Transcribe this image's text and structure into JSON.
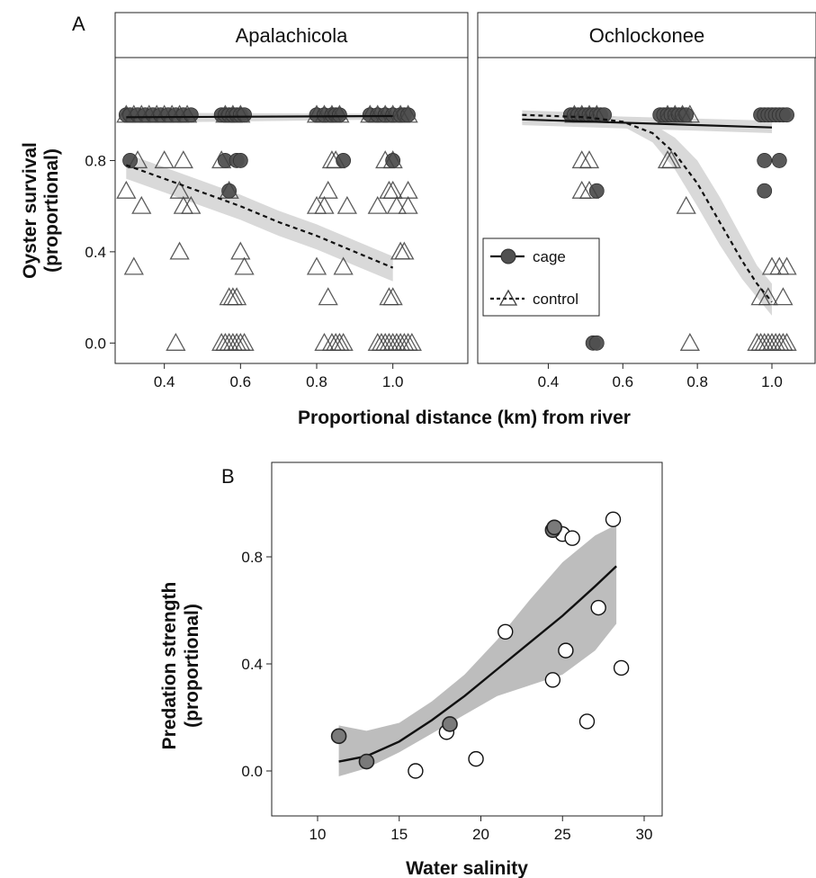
{
  "colors": {
    "cage_fill": "#505050",
    "cage_stroke": "#303030",
    "control_stroke": "#404040",
    "ribbon_a": "#d9d9d9",
    "ribbon_b": "#bdbdbd",
    "salinity_cage_fill": "#7a7a7a",
    "salinity_control_fill": "#ffffff",
    "line": "#111111"
  },
  "panel_a": {
    "letter": "A",
    "ylabel_line1": "Oyster survival",
    "ylabel_line2": "(proportional)",
    "xlabel": "Proportional distance (km) from river",
    "legend": {
      "cage": "cage",
      "control": "control"
    }
  },
  "panel_b": {
    "letter": "B",
    "ylabel_line1": "Predation strength",
    "ylabel_line2": "(proportional)",
    "xlabel": "Water salinity"
  },
  "chart_data": [
    {
      "type": "scatter",
      "facet": "Apalachicola",
      "xlim": [
        0.25,
        1.08
      ],
      "ylim": [
        -0.05,
        1.2
      ],
      "x_ticks": [
        0.4,
        0.6,
        0.8,
        1.0
      ],
      "x_tick_labels": [
        "0.4",
        "0.6",
        "0.8",
        "1.0"
      ],
      "y_ticks": [
        0.0,
        0.4,
        0.8
      ],
      "y_tick_labels": [
        "0.0",
        "0.4",
        "0.8"
      ],
      "grid": false,
      "legend_position": "inside-right (second facet)",
      "series": [
        {
          "name": "cage",
          "marker": "circle",
          "points": [
            [
              0.3,
              1.0
            ],
            [
              0.31,
              1.0
            ],
            [
              0.33,
              1.0
            ],
            [
              0.35,
              1.0
            ],
            [
              0.37,
              1.0
            ],
            [
              0.39,
              1.0
            ],
            [
              0.41,
              1.0
            ],
            [
              0.43,
              1.0
            ],
            [
              0.45,
              1.0
            ],
            [
              0.47,
              1.0
            ],
            [
              0.55,
              1.0
            ],
            [
              0.56,
              1.0
            ],
            [
              0.57,
              1.0
            ],
            [
              0.58,
              1.0
            ],
            [
              0.59,
              1.0
            ],
            [
              0.6,
              1.0
            ],
            [
              0.61,
              1.0
            ],
            [
              0.8,
              1.0
            ],
            [
              0.82,
              1.0
            ],
            [
              0.84,
              1.0
            ],
            [
              0.85,
              1.0
            ],
            [
              0.86,
              1.0
            ],
            [
              0.94,
              1.0
            ],
            [
              0.96,
              1.0
            ],
            [
              0.98,
              1.0
            ],
            [
              1.0,
              1.0
            ],
            [
              1.02,
              1.0
            ],
            [
              1.03,
              1.0
            ],
            [
              1.04,
              1.0
            ],
            [
              0.31,
              0.8
            ],
            [
              0.56,
              0.8
            ],
            [
              0.59,
              0.8
            ],
            [
              0.6,
              0.8
            ],
            [
              0.87,
              0.8
            ],
            [
              1.0,
              0.8
            ],
            [
              0.57,
              0.667
            ]
          ],
          "fit": {
            "x": [
              0.3,
              1.0
            ],
            "y": [
              0.99,
              0.995
            ]
          }
        },
        {
          "name": "control",
          "marker": "triangle",
          "points": [
            [
              0.3,
              1.0
            ],
            [
              0.32,
              1.0
            ],
            [
              0.34,
              1.0
            ],
            [
              0.36,
              1.0
            ],
            [
              0.38,
              1.0
            ],
            [
              0.4,
              1.0
            ],
            [
              0.42,
              1.0
            ],
            [
              0.44,
              1.0
            ],
            [
              0.46,
              1.0
            ],
            [
              0.56,
              1.0
            ],
            [
              0.58,
              1.0
            ],
            [
              0.6,
              1.0
            ],
            [
              0.8,
              1.0
            ],
            [
              0.82,
              1.0
            ],
            [
              0.84,
              1.0
            ],
            [
              0.86,
              1.0
            ],
            [
              0.94,
              1.0
            ],
            [
              0.96,
              1.0
            ],
            [
              0.98,
              1.0
            ],
            [
              1.0,
              1.0
            ],
            [
              1.02,
              1.0
            ],
            [
              1.04,
              1.0
            ],
            [
              0.33,
              0.8
            ],
            [
              0.4,
              0.8
            ],
            [
              0.45,
              0.8
            ],
            [
              0.55,
              0.8
            ],
            [
              0.84,
              0.8
            ],
            [
              0.85,
              0.8
            ],
            [
              0.98,
              0.8
            ],
            [
              1.0,
              0.8
            ],
            [
              0.3,
              0.667
            ],
            [
              0.44,
              0.667
            ],
            [
              0.57,
              0.667
            ],
            [
              0.83,
              0.667
            ],
            [
              0.99,
              0.667
            ],
            [
              1.0,
              0.667
            ],
            [
              1.04,
              0.667
            ],
            [
              0.34,
              0.6
            ],
            [
              0.45,
              0.6
            ],
            [
              0.47,
              0.6
            ],
            [
              0.8,
              0.6
            ],
            [
              0.82,
              0.6
            ],
            [
              0.88,
              0.6
            ],
            [
              0.96,
              0.6
            ],
            [
              1.01,
              0.6
            ],
            [
              1.04,
              0.6
            ],
            [
              0.6,
              0.4
            ],
            [
              0.44,
              0.4
            ],
            [
              1.02,
              0.4
            ],
            [
              1.03,
              0.4
            ],
            [
              0.32,
              0.333
            ],
            [
              0.61,
              0.333
            ],
            [
              0.8,
              0.333
            ],
            [
              0.87,
              0.333
            ],
            [
              0.57,
              0.2
            ],
            [
              0.58,
              0.2
            ],
            [
              0.59,
              0.2
            ],
            [
              0.83,
              0.2
            ],
            [
              0.99,
              0.2
            ],
            [
              1.0,
              0.2
            ],
            [
              0.43,
              0.0
            ],
            [
              0.55,
              0.0
            ],
            [
              0.56,
              0.0
            ],
            [
              0.57,
              0.0
            ],
            [
              0.58,
              0.0
            ],
            [
              0.59,
              0.0
            ],
            [
              0.6,
              0.0
            ],
            [
              0.61,
              0.0
            ],
            [
              0.82,
              0.0
            ],
            [
              0.84,
              0.0
            ],
            [
              0.85,
              0.0
            ],
            [
              0.86,
              0.0
            ],
            [
              0.87,
              0.0
            ],
            [
              0.96,
              0.0
            ],
            [
              0.97,
              0.0
            ],
            [
              0.98,
              0.0
            ],
            [
              0.99,
              0.0
            ],
            [
              1.0,
              0.0
            ],
            [
              1.01,
              0.0
            ],
            [
              1.02,
              0.0
            ],
            [
              1.03,
              0.0
            ],
            [
              1.04,
              0.0
            ],
            [
              1.05,
              0.0
            ]
          ],
          "fit": {
            "x": [
              0.3,
              0.4,
              0.5,
              0.6,
              0.7,
              0.8,
              0.9,
              1.0
            ],
            "y": [
              0.78,
              0.72,
              0.66,
              0.6,
              0.53,
              0.47,
              0.4,
              0.33
            ]
          }
        }
      ]
    },
    {
      "type": "scatter",
      "facet": "Ochlockonee",
      "xlim": [
        0.3,
        1.08
      ],
      "ylim": [
        -0.05,
        1.2
      ],
      "x_ticks": [
        0.4,
        0.6,
        0.8,
        1.0
      ],
      "x_tick_labels": [
        "0.4",
        "0.6",
        "0.8",
        "1.0"
      ],
      "grid": false,
      "series": [
        {
          "name": "cage",
          "marker": "circle",
          "points": [
            [
              0.46,
              1.0
            ],
            [
              0.47,
              1.0
            ],
            [
              0.48,
              1.0
            ],
            [
              0.49,
              1.0
            ],
            [
              0.5,
              1.0
            ],
            [
              0.51,
              1.0
            ],
            [
              0.52,
              1.0
            ],
            [
              0.53,
              1.0
            ],
            [
              0.54,
              1.0
            ],
            [
              0.55,
              1.0
            ],
            [
              0.7,
              1.0
            ],
            [
              0.71,
              1.0
            ],
            [
              0.72,
              1.0
            ],
            [
              0.73,
              1.0
            ],
            [
              0.74,
              1.0
            ],
            [
              0.75,
              1.0
            ],
            [
              0.76,
              1.0
            ],
            [
              0.77,
              1.0
            ],
            [
              0.97,
              1.0
            ],
            [
              0.98,
              1.0
            ],
            [
              0.99,
              1.0
            ],
            [
              1.0,
              1.0
            ],
            [
              1.01,
              1.0
            ],
            [
              1.02,
              1.0
            ],
            [
              1.03,
              1.0
            ],
            [
              1.04,
              1.0
            ],
            [
              0.98,
              0.8
            ],
            [
              1.02,
              0.8
            ],
            [
              0.53,
              0.667
            ],
            [
              0.98,
              0.667
            ],
            [
              0.52,
              0.0
            ],
            [
              0.53,
              0.0
            ]
          ],
          "fit": {
            "x": [
              0.33,
              1.0
            ],
            "y": [
              0.98,
              0.945
            ]
          }
        },
        {
          "name": "control",
          "marker": "triangle",
          "points": [
            [
              0.47,
              1.0
            ],
            [
              0.49,
              1.0
            ],
            [
              0.51,
              1.0
            ],
            [
              0.53,
              1.0
            ],
            [
              0.72,
              1.0
            ],
            [
              0.74,
              1.0
            ],
            [
              0.76,
              1.0
            ],
            [
              0.78,
              1.0
            ],
            [
              0.49,
              0.8
            ],
            [
              0.51,
              0.8
            ],
            [
              0.72,
              0.8
            ],
            [
              0.73,
              0.8
            ],
            [
              0.49,
              0.667
            ],
            [
              0.51,
              0.667
            ],
            [
              0.77,
              0.6
            ],
            [
              1.0,
              0.333
            ],
            [
              1.02,
              0.333
            ],
            [
              1.04,
              0.333
            ],
            [
              0.97,
              0.2
            ],
            [
              0.99,
              0.2
            ],
            [
              1.03,
              0.2
            ],
            [
              0.78,
              0.0
            ],
            [
              0.96,
              0.0
            ],
            [
              0.97,
              0.0
            ],
            [
              0.98,
              0.0
            ],
            [
              0.99,
              0.0
            ],
            [
              1.0,
              0.0
            ],
            [
              1.01,
              0.0
            ],
            [
              1.02,
              0.0
            ],
            [
              1.03,
              0.0
            ],
            [
              1.04,
              0.0
            ]
          ],
          "fit": {
            "x": [
              0.33,
              0.5,
              0.6,
              0.68,
              0.74,
              0.8,
              0.86,
              0.92,
              0.96,
              1.0
            ],
            "y": [
              1.0,
              0.99,
              0.97,
              0.92,
              0.83,
              0.7,
              0.53,
              0.36,
              0.26,
              0.18
            ]
          }
        }
      ]
    },
    {
      "type": "scatter",
      "xlim": [
        7,
        31
      ],
      "ylim": [
        -0.12,
        1.02
      ],
      "x_ticks": [
        10,
        15,
        20,
        25,
        30
      ],
      "x_tick_labels": [
        "10",
        "15",
        "20",
        "25",
        "30"
      ],
      "y_ticks": [
        0.0,
        0.4,
        0.8
      ],
      "y_tick_labels": [
        "0.0",
        "0.4",
        "0.8"
      ],
      "grid": false,
      "series": [
        {
          "fill": "grey",
          "points": [
            [
              11.3,
              0.13
            ],
            [
              13.0,
              0.035
            ],
            [
              18.1,
              0.175
            ],
            [
              24.4,
              0.9
            ],
            [
              24.5,
              0.91
            ]
          ]
        },
        {
          "fill": "white",
          "points": [
            [
              16.0,
              0.0
            ],
            [
              17.9,
              0.145
            ],
            [
              19.7,
              0.045
            ],
            [
              21.5,
              0.52
            ],
            [
              24.4,
              0.34
            ],
            [
              25.0,
              0.885
            ],
            [
              25.2,
              0.45
            ],
            [
              25.6,
              0.87
            ],
            [
              26.5,
              0.185
            ],
            [
              27.2,
              0.61
            ],
            [
              28.1,
              0.94
            ],
            [
              28.6,
              0.385
            ]
          ]
        }
      ],
      "fit": {
        "x": [
          11.3,
          13,
          15,
          17,
          19,
          21,
          23,
          25,
          27,
          28.3
        ],
        "y": [
          0.035,
          0.055,
          0.11,
          0.19,
          0.28,
          0.38,
          0.48,
          0.58,
          0.69,
          0.765
        ],
        "lower": [
          -0.02,
          0.01,
          0.07,
          0.14,
          0.21,
          0.28,
          0.32,
          0.36,
          0.45,
          0.55
        ],
        "upper": [
          0.17,
          0.15,
          0.18,
          0.26,
          0.36,
          0.49,
          0.64,
          0.78,
          0.88,
          0.92
        ]
      }
    }
  ]
}
